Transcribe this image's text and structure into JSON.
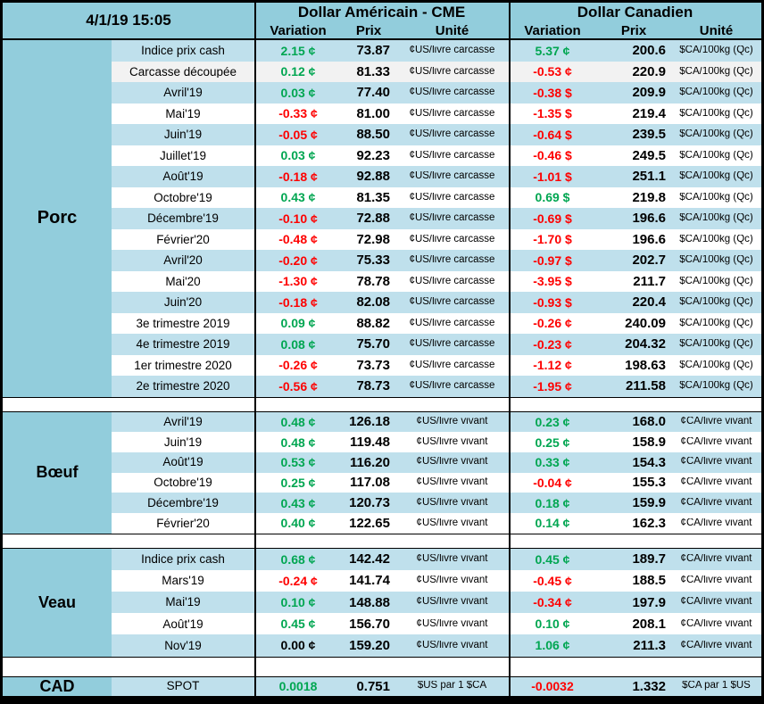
{
  "header": {
    "date": "4/1/19 15:05",
    "us_title": "Dollar Américain - CME",
    "ca_title": "Dollar Canadien",
    "cols": {
      "variation": "Variation",
      "prix": "Prix",
      "unite": "Unité"
    }
  },
  "colors": {
    "positive": "#00A651",
    "negative": "#FE0000",
    "neutral": "#000000",
    "header_blue": "#92CDDC",
    "band_blue": "#BFE0EC",
    "special_row_bg": "#F2F2F2"
  },
  "sections": [
    {
      "label": "Porc",
      "rows": [
        {
          "label": "Indice prix cash",
          "us": {
            "var": "2.15 ¢",
            "trend": "up",
            "prix": "73.87",
            "unit": "¢US/livre carcasse"
          },
          "ca": {
            "var": "5.37 ¢",
            "trend": "up",
            "prix": "200.6",
            "unit": "$CA/100kg (Qc)"
          }
        },
        {
          "label": "Carcasse découpée",
          "bg": "#F2F2F2",
          "us": {
            "var": "0.12 ¢",
            "trend": "up",
            "prix": "81.33",
            "unit": "¢US/livre carcasse"
          },
          "ca": {
            "var": "-0.53 ¢",
            "trend": "down",
            "prix": "220.9",
            "unit": "$CA/100kg (Qc)"
          }
        },
        {
          "label": "Avril'19",
          "us": {
            "var": "0.03 ¢",
            "trend": "up",
            "prix": "77.40",
            "unit": "¢US/livre carcasse"
          },
          "ca": {
            "var": "-0.38 $",
            "trend": "down",
            "prix": "209.9",
            "unit": "$CA/100kg (Qc)"
          }
        },
        {
          "label": "Mai'19",
          "us": {
            "var": "-0.33 ¢",
            "trend": "down",
            "prix": "81.00",
            "unit": "¢US/livre carcasse"
          },
          "ca": {
            "var": "-1.35 $",
            "trend": "down",
            "prix": "219.4",
            "unit": "$CA/100kg (Qc)"
          }
        },
        {
          "label": "Juin'19",
          "us": {
            "var": "-0.05 ¢",
            "trend": "down",
            "prix": "88.50",
            "unit": "¢US/livre carcasse"
          },
          "ca": {
            "var": "-0.64 $",
            "trend": "down",
            "prix": "239.5",
            "unit": "$CA/100kg (Qc)"
          }
        },
        {
          "label": "Juillet'19",
          "us": {
            "var": "0.03 ¢",
            "trend": "up",
            "prix": "92.23",
            "unit": "¢US/livre carcasse"
          },
          "ca": {
            "var": "-0.46 $",
            "trend": "down",
            "prix": "249.5",
            "unit": "$CA/100kg (Qc)"
          }
        },
        {
          "label": "Août'19",
          "us": {
            "var": "-0.18 ¢",
            "trend": "down",
            "prix": "92.88",
            "unit": "¢US/livre carcasse"
          },
          "ca": {
            "var": "-1.01 $",
            "trend": "down",
            "prix": "251.1",
            "unit": "$CA/100kg (Qc)"
          }
        },
        {
          "label": "Octobre'19",
          "us": {
            "var": "0.43 ¢",
            "trend": "up",
            "prix": "81.35",
            "unit": "¢US/livre carcasse"
          },
          "ca": {
            "var": "0.69 $",
            "trend": "up",
            "prix": "219.8",
            "unit": "$CA/100kg (Qc)"
          }
        },
        {
          "label": "Décembre'19",
          "us": {
            "var": "-0.10 ¢",
            "trend": "down",
            "prix": "72.88",
            "unit": "¢US/livre carcasse"
          },
          "ca": {
            "var": "-0.69 $",
            "trend": "down",
            "prix": "196.6",
            "unit": "$CA/100kg (Qc)"
          }
        },
        {
          "label": "Février'20",
          "us": {
            "var": "-0.48 ¢",
            "trend": "down",
            "prix": "72.98",
            "unit": "¢US/livre carcasse"
          },
          "ca": {
            "var": "-1.70 $",
            "trend": "down",
            "prix": "196.6",
            "unit": "$CA/100kg (Qc)"
          }
        },
        {
          "label": "Avril'20",
          "us": {
            "var": "-0.20 ¢",
            "trend": "down",
            "prix": "75.33",
            "unit": "¢US/livre carcasse"
          },
          "ca": {
            "var": "-0.97 $",
            "trend": "down",
            "prix": "202.7",
            "unit": "$CA/100kg (Qc)"
          }
        },
        {
          "label": "Mai'20",
          "us": {
            "var": "-1.30 ¢",
            "trend": "down",
            "prix": "78.78",
            "unit": "¢US/livre carcasse"
          },
          "ca": {
            "var": "-3.95 $",
            "trend": "down",
            "prix": "211.7",
            "unit": "$CA/100kg (Qc)"
          }
        },
        {
          "label": "Juin'20",
          "us": {
            "var": "-0.18 ¢",
            "trend": "down",
            "prix": "82.08",
            "unit": "¢US/livre carcasse"
          },
          "ca": {
            "var": "-0.93 $",
            "trend": "down",
            "prix": "220.4",
            "unit": "$CA/100kg (Qc)"
          }
        },
        {
          "label": "3e trimestre 2019",
          "us": {
            "var": "0.09 ¢",
            "trend": "up",
            "prix": "88.82",
            "unit": "¢US/livre carcasse"
          },
          "ca": {
            "var": "-0.26 ¢",
            "trend": "down",
            "prix": "240.09",
            "unit": "$CA/100kg (Qc)"
          }
        },
        {
          "label": "4e trimestre 2019",
          "us": {
            "var": "0.08 ¢",
            "trend": "up",
            "prix": "75.70",
            "unit": "¢US/livre carcasse"
          },
          "ca": {
            "var": "-0.23 ¢",
            "trend": "down",
            "prix": "204.32",
            "unit": "$CA/100kg (Qc)"
          }
        },
        {
          "label": "1er trimestre 2020",
          "us": {
            "var": "-0.26 ¢",
            "trend": "down",
            "prix": "73.73",
            "unit": "¢US/livre carcasse"
          },
          "ca": {
            "var": "-1.12 ¢",
            "trend": "down",
            "prix": "198.63",
            "unit": "$CA/100kg (Qc)"
          }
        },
        {
          "label": "2e trimestre 2020",
          "us": {
            "var": "-0.56 ¢",
            "trend": "down",
            "prix": "78.73",
            "unit": "¢US/livre carcasse"
          },
          "ca": {
            "var": "-1.95 ¢",
            "trend": "down",
            "prix": "211.58",
            "unit": "$CA/100kg (Qc)"
          }
        }
      ]
    },
    {
      "label": "Bœuf",
      "rows": [
        {
          "label": "Avril'19",
          "us": {
            "var": "0.48 ¢",
            "trend": "up",
            "prix": "126.18",
            "unit": "¢US/livre vivant"
          },
          "ca": {
            "var": "0.23 ¢",
            "trend": "up",
            "prix": "168.0",
            "unit": "¢CA/livre vivant"
          }
        },
        {
          "label": "Juin'19",
          "us": {
            "var": "0.48 ¢",
            "trend": "up",
            "prix": "119.48",
            "unit": "¢US/livre vivant"
          },
          "ca": {
            "var": "0.25 ¢",
            "trend": "up",
            "prix": "158.9",
            "unit": "¢CA/livre vivant"
          }
        },
        {
          "label": "Août'19",
          "us": {
            "var": "0.53 ¢",
            "trend": "up",
            "prix": "116.20",
            "unit": "¢US/livre vivant"
          },
          "ca": {
            "var": "0.33 ¢",
            "trend": "up",
            "prix": "154.3",
            "unit": "¢CA/livre vivant"
          }
        },
        {
          "label": "Octobre'19",
          "us": {
            "var": "0.25 ¢",
            "trend": "up",
            "prix": "117.08",
            "unit": "¢US/livre vivant"
          },
          "ca": {
            "var": "-0.04 ¢",
            "trend": "down",
            "prix": "155.3",
            "unit": "¢CA/livre vivant"
          }
        },
        {
          "label": "Décembre'19",
          "us": {
            "var": "0.43 ¢",
            "trend": "up",
            "prix": "120.73",
            "unit": "¢US/livre vivant"
          },
          "ca": {
            "var": "0.18 ¢",
            "trend": "up",
            "prix": "159.9",
            "unit": "¢CA/livre vivant"
          }
        },
        {
          "label": "Février'20",
          "us": {
            "var": "0.40 ¢",
            "trend": "up",
            "prix": "122.65",
            "unit": "¢US/livre vivant"
          },
          "ca": {
            "var": "0.14 ¢",
            "trend": "up",
            "prix": "162.3",
            "unit": "¢CA/livre vivant"
          }
        }
      ]
    },
    {
      "label": "Veau",
      "rows": [
        {
          "label": "Indice prix cash",
          "us": {
            "var": "0.68 ¢",
            "trend": "up",
            "prix": "142.42",
            "unit": "¢US/livre vivant"
          },
          "ca": {
            "var": "0.45 ¢",
            "trend": "up",
            "prix": "189.7",
            "unit": "¢CA/livre vivant"
          }
        },
        {
          "label": "Mars'19",
          "us": {
            "var": "-0.24 ¢",
            "trend": "down",
            "prix": "141.74",
            "unit": "¢US/livre vivant"
          },
          "ca": {
            "var": "-0.45 ¢",
            "trend": "down",
            "prix": "188.5",
            "unit": "¢CA/livre vivant"
          }
        },
        {
          "label": "Mai'19",
          "us": {
            "var": "0.10 ¢",
            "trend": "up",
            "prix": "148.88",
            "unit": "¢US/livre vivant"
          },
          "ca": {
            "var": "-0.34 ¢",
            "trend": "down",
            "prix": "197.9",
            "unit": "¢CA/livre vivant"
          }
        },
        {
          "label": "Août'19",
          "us": {
            "var": "0.45 ¢",
            "trend": "up",
            "prix": "156.70",
            "unit": "¢US/livre vivant"
          },
          "ca": {
            "var": "0.10 ¢",
            "trend": "up",
            "prix": "208.1",
            "unit": "¢CA/livre vivant"
          }
        },
        {
          "label": "Nov'19",
          "us": {
            "var": "0.00 ¢",
            "trend": "flat",
            "prix": "159.20",
            "unit": "¢US/livre vivant"
          },
          "ca": {
            "var": "1.06 ¢",
            "trend": "up",
            "prix": "211.3",
            "unit": "¢CA/livre vivant"
          }
        }
      ]
    },
    {
      "label": "CAD",
      "rows": [
        {
          "label": "SPOT",
          "us": {
            "var": "0.0018",
            "trend": "up",
            "prix": "0.751",
            "unit": "$US par 1 $CA"
          },
          "ca": {
            "var": "-0.0032",
            "trend": "down",
            "prix": "1.332",
            "unit": "$CA par 1 $US"
          }
        }
      ]
    }
  ]
}
